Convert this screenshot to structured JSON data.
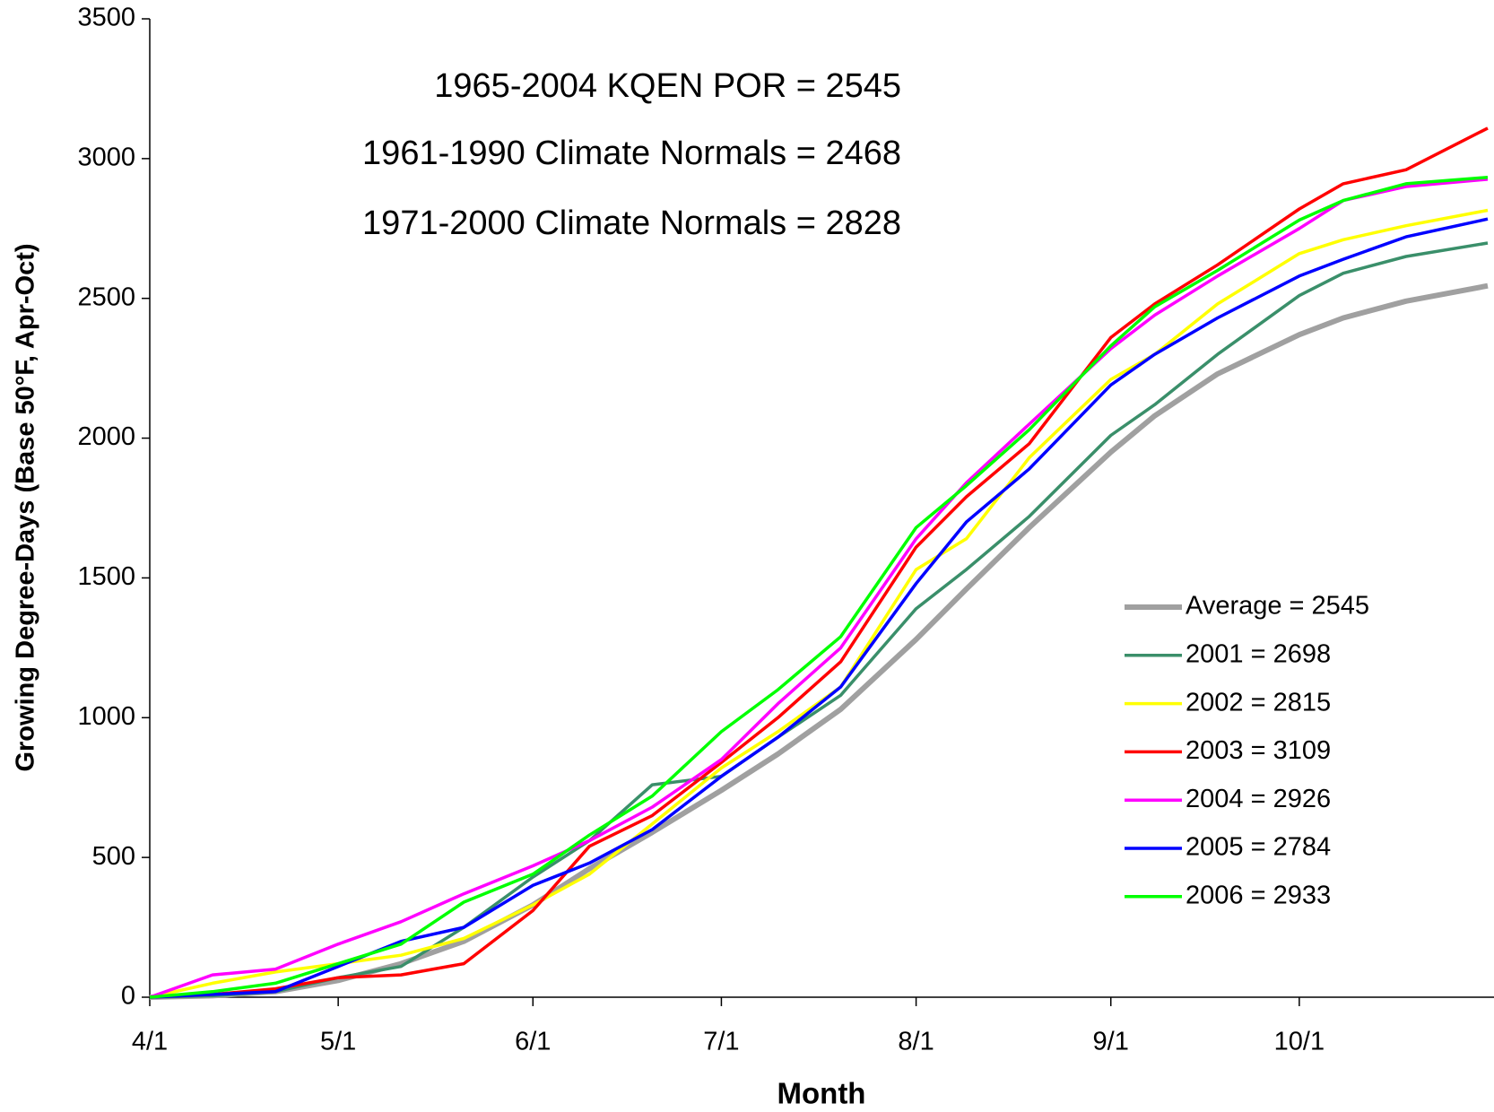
{
  "chart_data": {
    "type": "line",
    "y_label": "Growing Degree-Days (Base 50°F, Apr-Oct)",
    "x_label": "Month",
    "annotations": [
      "1965-2004 KQEN POR = 2545",
      "1961-1990 Climate Normals = 2468",
      "1971-2000 Climate Normals = 2828"
    ],
    "x": [
      0,
      10,
      20,
      30,
      40,
      50,
      61,
      70,
      80,
      91,
      100,
      110,
      122,
      130,
      140,
      153,
      160,
      170,
      183,
      190,
      200,
      213
    ],
    "xlim": [
      0,
      214
    ],
    "xticks": [
      {
        "value": 0,
        "label": "4/1"
      },
      {
        "value": 30,
        "label": "5/1"
      },
      {
        "value": 61,
        "label": "6/1"
      },
      {
        "value": 91,
        "label": "7/1"
      },
      {
        "value": 122,
        "label": "8/1"
      },
      {
        "value": 153,
        "label": "9/1"
      },
      {
        "value": 183,
        "label": "10/1"
      }
    ],
    "ylim": [
      0,
      3500
    ],
    "yticks": [
      0,
      500,
      1000,
      1500,
      2000,
      2500,
      3000,
      3500
    ],
    "legend": "right",
    "series": [
      {
        "name": "Average = 2545",
        "color": "#a0a0a0",
        "width": 6,
        "values": [
          0,
          5,
          20,
          60,
          120,
          200,
          330,
          460,
          590,
          740,
          870,
          1030,
          1280,
          1460,
          1680,
          1950,
          2080,
          2230,
          2370,
          2430,
          2490,
          2545
        ]
      },
      {
        "name": "2001 = 2698",
        "color": "#3a8f6a",
        "width": 3.5,
        "values": [
          0,
          5,
          20,
          70,
          110,
          250,
          430,
          560,
          760,
          790,
          930,
          1080,
          1390,
          1530,
          1720,
          2010,
          2120,
          2300,
          2510,
          2590,
          2650,
          2698
        ]
      },
      {
        "name": "2002 = 2815",
        "color": "#ffff00",
        "width": 3.5,
        "values": [
          0,
          50,
          90,
          120,
          150,
          210,
          330,
          440,
          620,
          820,
          950,
          1110,
          1530,
          1640,
          1930,
          2210,
          2300,
          2480,
          2660,
          2710,
          2760,
          2815
        ]
      },
      {
        "name": "2003 = 3109",
        "color": "#ff0000",
        "width": 3.5,
        "values": [
          0,
          10,
          30,
          70,
          80,
          120,
          310,
          540,
          650,
          840,
          1000,
          1200,
          1610,
          1790,
          1980,
          2360,
          2480,
          2620,
          2820,
          2910,
          2960,
          3109
        ]
      },
      {
        "name": "2004 = 2926",
        "color": "#ff00ff",
        "width": 3.5,
        "values": [
          0,
          80,
          100,
          190,
          270,
          370,
          470,
          560,
          680,
          850,
          1050,
          1250,
          1640,
          1840,
          2050,
          2320,
          2440,
          2580,
          2750,
          2850,
          2900,
          2926
        ]
      },
      {
        "name": "2005 = 2784",
        "color": "#0000ff",
        "width": 3.5,
        "values": [
          0,
          10,
          20,
          110,
          200,
          250,
          400,
          480,
          600,
          790,
          930,
          1110,
          1480,
          1700,
          1890,
          2190,
          2300,
          2430,
          2580,
          2640,
          2720,
          2784
        ]
      },
      {
        "name": "2006 = 2933",
        "color": "#00ff00",
        "width": 3.5,
        "values": [
          0,
          20,
          50,
          120,
          190,
          340,
          440,
          580,
          720,
          950,
          1100,
          1290,
          1680,
          1830,
          2030,
          2330,
          2470,
          2600,
          2780,
          2850,
          2910,
          2933
        ]
      }
    ]
  }
}
